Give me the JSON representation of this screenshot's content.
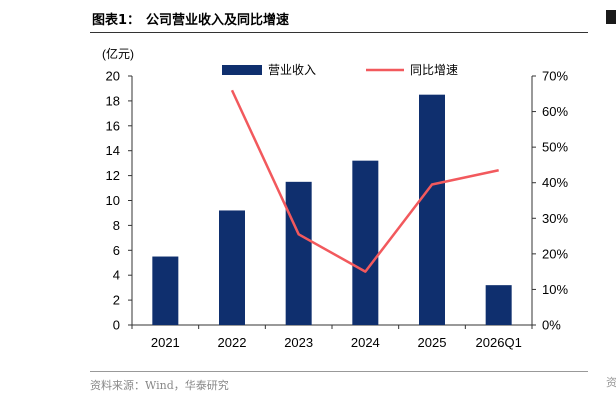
{
  "header": {
    "label": "图表1：",
    "title": "公司营业收入及同比增速"
  },
  "source": "资料来源：Wind，华泰研究",
  "edge_glyph": "资",
  "colors": {
    "bar": "#0f2f6e",
    "line": "#f2595d",
    "axis": "#333333"
  },
  "chart_data": {
    "type": "bar+line",
    "categories": [
      "2021",
      "2022",
      "2023",
      "2024",
      "2025",
      "2026Q1"
    ],
    "y_left": {
      "unit_label": "(亿元)",
      "ylim": [
        0,
        20
      ],
      "ticks": [
        0,
        2,
        4,
        6,
        8,
        10,
        12,
        14,
        16,
        18,
        20
      ]
    },
    "y_right": {
      "ylim": [
        0,
        70
      ],
      "ticks": [
        "0%",
        "10%",
        "20%",
        "30%",
        "40%",
        "50%",
        "60%",
        "70%"
      ]
    },
    "grid": false,
    "legend_position": "top",
    "series": [
      {
        "name": "营业收入",
        "kind": "bar",
        "axis": "left",
        "values": [
          5.5,
          9.2,
          11.5,
          13.2,
          18.5,
          3.2
        ]
      },
      {
        "name": "同比增速",
        "kind": "line",
        "axis": "right",
        "values": [
          null,
          66.0,
          25.5,
          15.0,
          39.5,
          43.5
        ]
      }
    ]
  }
}
